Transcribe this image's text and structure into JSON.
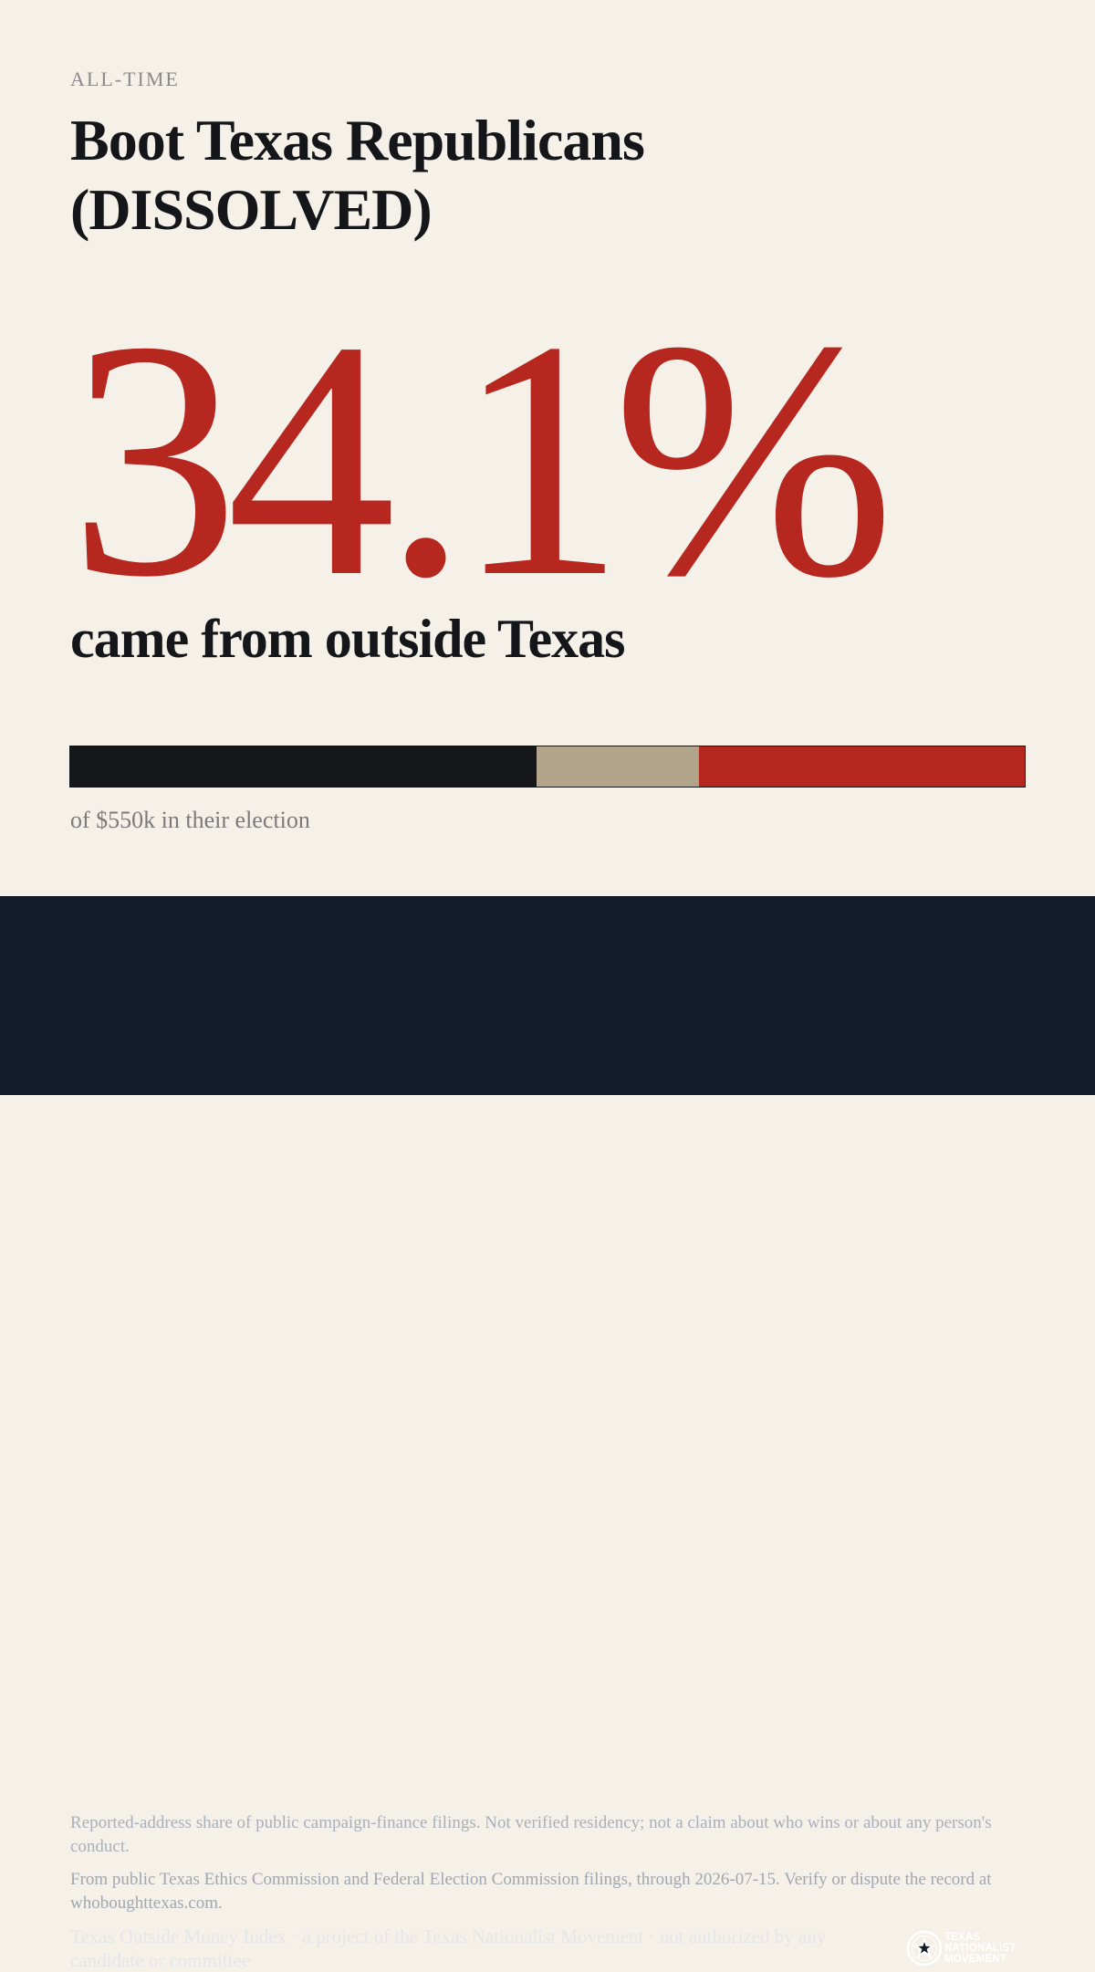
{
  "header": {
    "eyebrow": "ALL-TIME",
    "title": "Boot Texas Republicans (DISSOLVED)"
  },
  "stat": {
    "value": "34.1%",
    "caption": "came from outside Texas"
  },
  "breakdown_bar": {
    "segments": [
      {
        "key": "dark",
        "share": 0.489,
        "color": "#15171b"
      },
      {
        "key": "tan",
        "share": 0.17,
        "color": "#b1a48a"
      },
      {
        "key": "red",
        "share": 0.341,
        "color": "#b62720"
      }
    ],
    "total_label": "of $550k in their election"
  },
  "footer": {
    "disclaimer": "Reported-address share of public campaign-finance filings. Not verified residency; not a claim about who wins or about any person's conduct.",
    "source": "From public Texas Ethics Commission and Federal Election Commission filings, through 2026-07-15. Verify or dispute the record at whoboughttexas.com.",
    "credit": "Texas Outside Money Index · a project of the Texas Nationalist Movement · not authorized by any candidate or committee",
    "logo": {
      "icon": "tnm-star-seal-icon",
      "line1": "TEXAS",
      "line2": "NATIONALIST",
      "line3": "MOVEMENT"
    }
  }
}
